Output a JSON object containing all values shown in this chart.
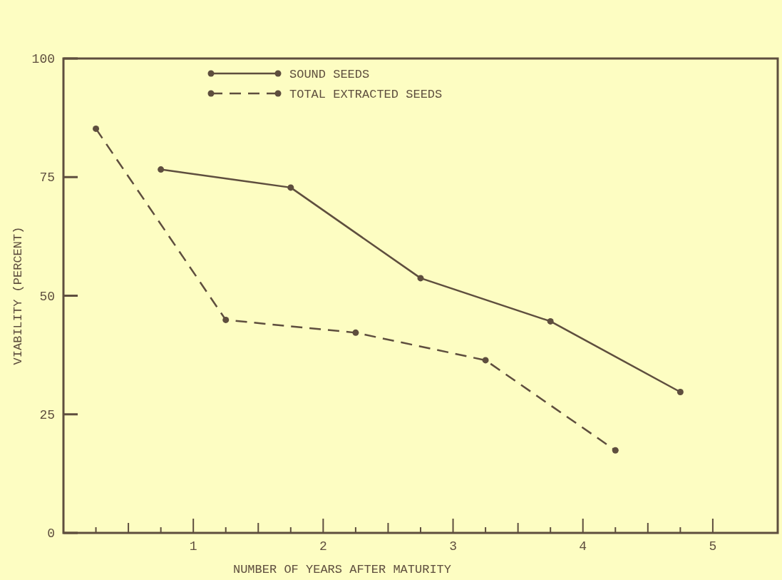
{
  "chart_data": {
    "type": "line",
    "xlabel": "NUMBER OF YEARS AFTER MATURITY",
    "ylabel": "VIABILITY (PERCENT)",
    "xlim": [
      0,
      5.5
    ],
    "ylim": [
      0,
      100
    ],
    "xticks": [
      {
        "value": 0.25,
        "label": null
      },
      {
        "value": 0.5,
        "label": null
      },
      {
        "value": 0.75,
        "label": null
      },
      1,
      {
        "value": 1.25,
        "label": null
      },
      {
        "value": 1.5,
        "label": null
      },
      {
        "value": 1.75,
        "label": null
      },
      2,
      {
        "value": 2.25,
        "label": null
      },
      {
        "value": 2.5,
        "label": null
      },
      {
        "value": 2.75,
        "label": null
      },
      3,
      {
        "value": 3.25,
        "label": null
      },
      {
        "value": 3.5,
        "label": null
      },
      {
        "value": 3.75,
        "label": null
      },
      4,
      {
        "value": 4.25,
        "label": null
      },
      {
        "value": 4.5,
        "label": null
      },
      {
        "value": 4.75,
        "label": null
      },
      5
    ],
    "yticks": [
      0,
      25,
      50,
      75,
      100
    ],
    "marker": "circle",
    "legend": "top left",
    "grid": false,
    "series": [
      {
        "name": "SOUND SEEDS",
        "color": "#5e4e3e",
        "line_style": "solid",
        "x": [
          0.75,
          1.75,
          2.75,
          3.75,
          4.75
        ],
        "values": [
          76.6,
          72.8,
          53.7,
          44.6,
          29.7
        ]
      },
      {
        "name": "TOTAL EXTRACTED SEEDS",
        "color": "#5e4e3e",
        "line_style": "dashed",
        "x": [
          0.25,
          1.25,
          2.25,
          3.25,
          4.25
        ],
        "values": [
          85.2,
          44.9,
          42.2,
          36.4,
          17.4
        ]
      }
    ]
  }
}
